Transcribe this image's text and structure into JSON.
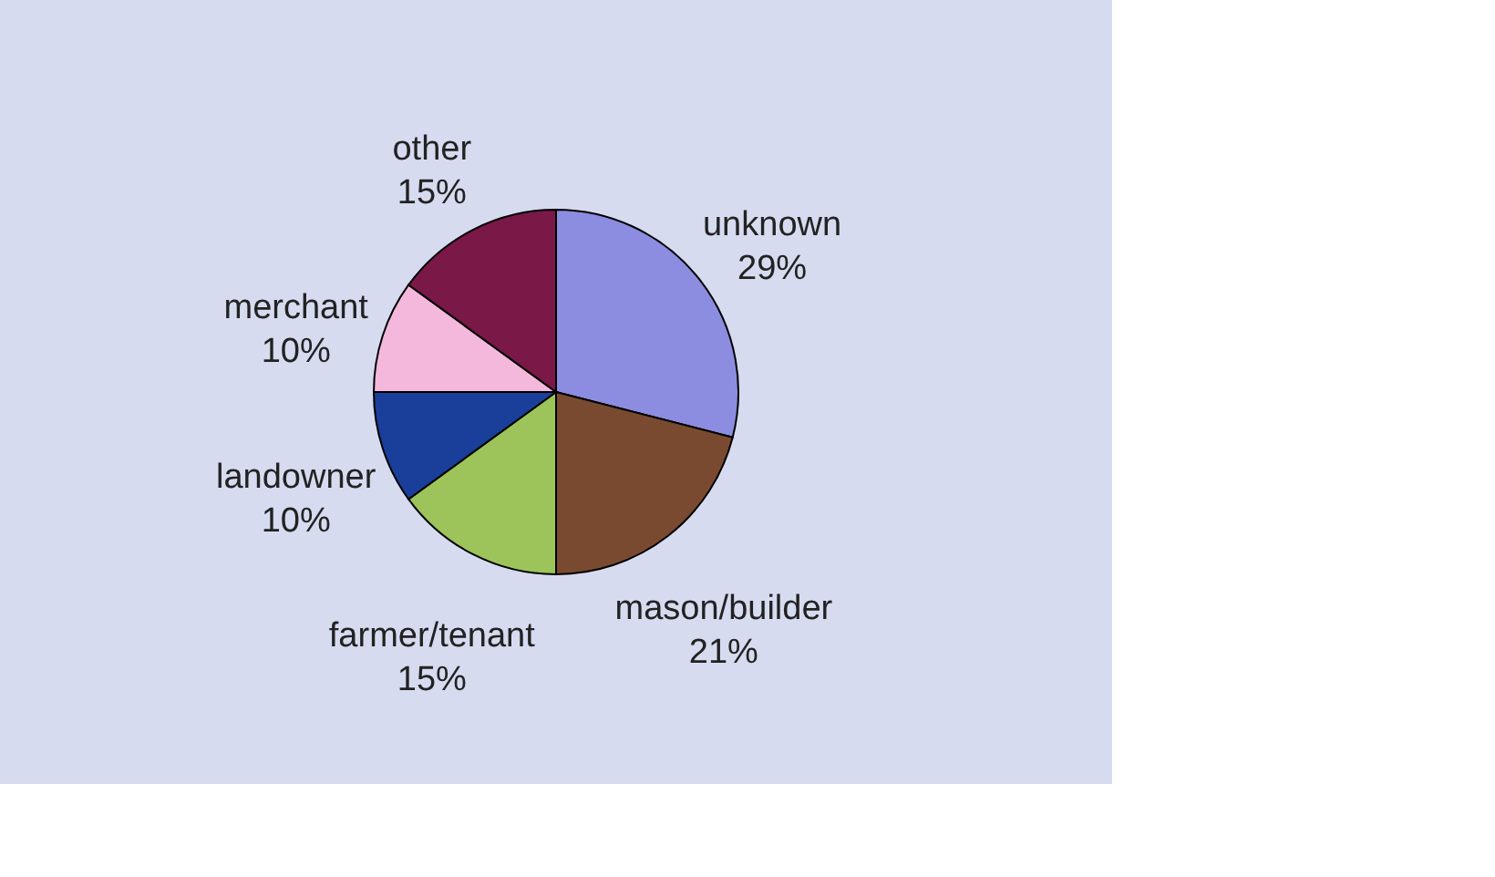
{
  "chart_data": {
    "type": "pie",
    "categories": [
      "unknown",
      "mason/builder",
      "farmer/tenant",
      "landowner",
      "merchant",
      "other"
    ],
    "values": [
      29,
      21,
      15,
      10,
      10,
      15
    ],
    "colors": [
      "#8c8ce0",
      "#7a4a30",
      "#9cc45a",
      "#1a3f9a",
      "#f4b8dc",
      "#7a1848"
    ],
    "value_labels": [
      "29%",
      "21%",
      "15%",
      "10%",
      "10%",
      "15%"
    ],
    "legend": false
  }
}
